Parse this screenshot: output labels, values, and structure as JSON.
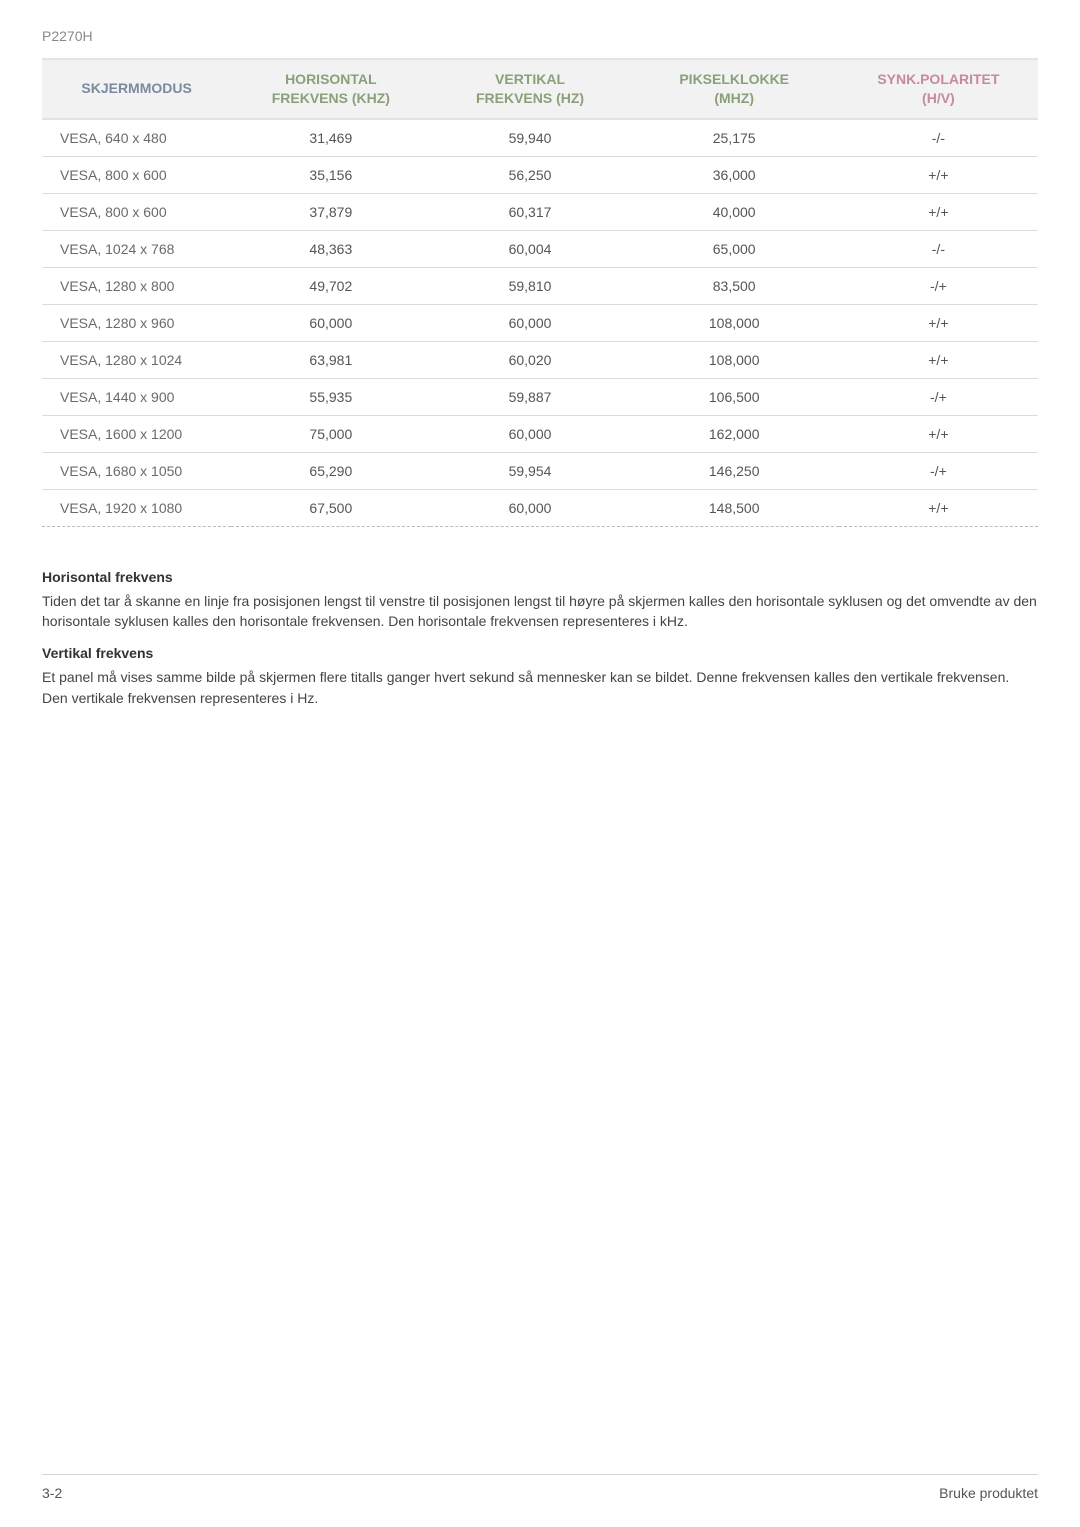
{
  "model": "P2270H",
  "table": {
    "columns": [
      {
        "label_line1": "SKJERMMODUS",
        "label_line2": "",
        "class": "first"
      },
      {
        "label_line1": "HORISONTAL",
        "label_line2": "FREKVENS (KHZ)",
        "class": "green"
      },
      {
        "label_line1": "VERTIKAL",
        "label_line2": "FREKVENS (HZ)",
        "class": "green"
      },
      {
        "label_line1": "PIKSELKLOKKE",
        "label_line2": "(MHZ)",
        "class": "green"
      },
      {
        "label_line1": "SYNK.POLARITET",
        "label_line2": "(H/V)",
        "class": "pink"
      }
    ],
    "rows": [
      [
        "VESA, 640 x 480",
        "31,469",
        "59,940",
        "25,175",
        "-/-"
      ],
      [
        "VESA, 800 x 600",
        "35,156",
        "56,250",
        "36,000",
        "+/+"
      ],
      [
        "VESA, 800 x 600",
        "37,879",
        "60,317",
        "40,000",
        "+/+"
      ],
      [
        "VESA, 1024 x 768",
        "48,363",
        "60,004",
        "65,000",
        "-/-"
      ],
      [
        "VESA, 1280 x 800",
        "49,702",
        "59,810",
        "83,500",
        "-/+"
      ],
      [
        "VESA, 1280 x 960",
        "60,000",
        "60,000",
        "108,000",
        "+/+"
      ],
      [
        "VESA, 1280 x 1024",
        "63,981",
        "60,020",
        "108,000",
        "+/+"
      ],
      [
        "VESA, 1440 x 900",
        "55,935",
        "59,887",
        "106,500",
        "-/+"
      ],
      [
        "VESA, 1600 x 1200",
        "75,000",
        "60,000",
        "162,000",
        "+/+"
      ],
      [
        "VESA, 1680 x 1050",
        "65,290",
        "59,954",
        "146,250",
        "-/+"
      ],
      [
        "VESA, 1920 x 1080",
        "67,500",
        "60,000",
        "148,500",
        "+/+"
      ]
    ]
  },
  "sections": {
    "h_title": "Horisontal frekvens",
    "h_body": "Tiden det tar å skanne en linje fra posisjonen lengst til venstre til posisjonen lengst til høyre på skjermen kalles den horisontale syklusen og det omvendte av den horisontale syklusen kalles den horisontale frekvensen. Den horisontale frekvensen representeres i kHz.",
    "v_title": "Vertikal frekvens",
    "v_body": "Et panel må vises samme bilde på skjermen flere titalls ganger hvert sekund så mennesker kan se bildet. Denne frekvensen kalles den vertikale frekvensen. Den vertikale frekvensen representeres i Hz."
  },
  "footer": {
    "left": "3-2",
    "right": "Bruke produktet"
  }
}
